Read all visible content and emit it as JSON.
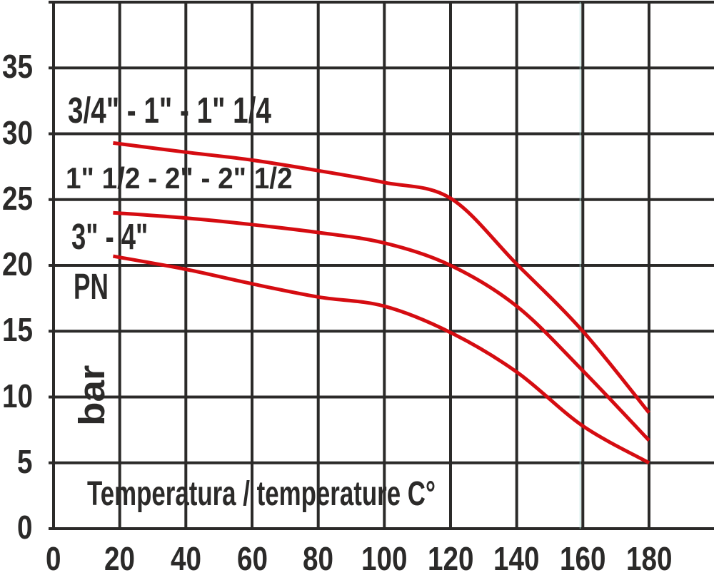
{
  "chart_data": {
    "type": "line",
    "title": "",
    "xlabel": "Temperatura / temperature C°",
    "ylabel": "PN",
    "ylabel_unit": "bar",
    "x_ticks": [
      "0",
      "20",
      "40",
      "60",
      "80",
      "100",
      "120",
      "140",
      "160",
      "180"
    ],
    "y_ticks": [
      "0",
      "5",
      "10",
      "15",
      "20",
      "25",
      "30",
      "35"
    ],
    "x_gridline_values": [
      0,
      20,
      40,
      60,
      80,
      100,
      120,
      140,
      160,
      180
    ],
    "y_gridline_values": [
      0,
      5,
      10,
      15,
      20,
      25,
      30,
      35,
      40
    ],
    "xlim": [
      0,
      200
    ],
    "ylim": [
      0,
      40
    ],
    "grid": true,
    "legend_position": "inline-left",
    "series": [
      {
        "name": "3/4\" - 1\" - 1\" 1/4",
        "x": [
          18,
          40,
          60,
          80,
          100,
          120,
          140,
          160,
          180
        ],
        "y": [
          29.3,
          28.6,
          28.0,
          27.2,
          26.3,
          25.1,
          20.1,
          15.0,
          8.8
        ]
      },
      {
        "name": "1\" 1/2 - 2\" - 2\" 1/2",
        "x": [
          18,
          40,
          60,
          80,
          100,
          120,
          140,
          160,
          180
        ],
        "y": [
          24.0,
          23.6,
          23.1,
          22.5,
          21.7,
          20.0,
          16.9,
          12.0,
          6.7
        ]
      },
      {
        "name": "3\" - 4\"",
        "x": [
          18,
          40,
          60,
          80,
          100,
          120,
          140,
          160,
          180
        ],
        "y": [
          20.7,
          19.7,
          18.6,
          17.6,
          16.9,
          14.9,
          11.9,
          7.8,
          5.0
        ]
      }
    ]
  },
  "colors": {
    "curve_red": "#d50c11",
    "grid": "#2b2a29",
    "text": "#2b2a29",
    "background": "#ffffff",
    "artifact_teal": "#9fd6d0"
  }
}
